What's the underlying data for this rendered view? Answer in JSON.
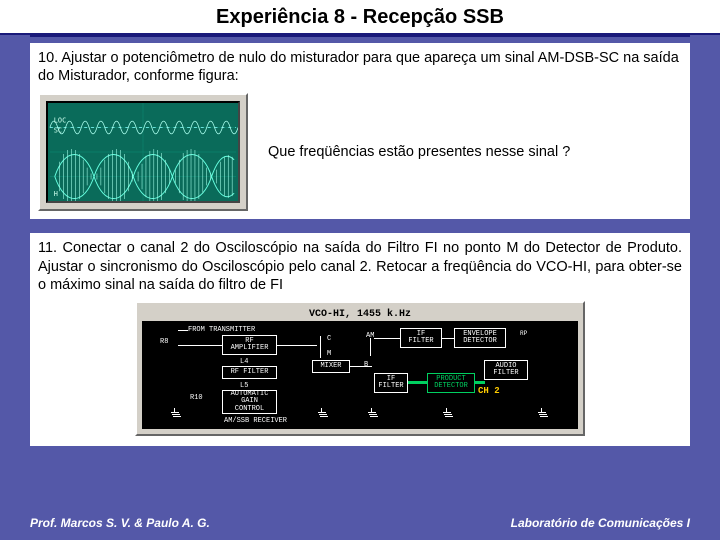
{
  "title": "Experiência 8 -   Recepção SSB",
  "step10": "10. Ajustar o potenciômetro de nulo do misturador para que apareça um sinal AM-DSB-SC na saída do Misturador, conforme figura:",
  "scope": {
    "bg": "#0a6b5a",
    "grid": "#0c8f78",
    "trace1_color": "#66ffe0",
    "trace2_color": "#aaffee",
    "label_loc": "LOC",
    "label_sc": "SC",
    "label_h": "H"
  },
  "question": "Que freqüências estão presentes nesse sinal ?",
  "step11": "11. Conectar o canal 2 do Osciloscópio na saída do Filtro FI no ponto M do Detector de Produto. Ajustar o sincronismo do Osciloscópio pelo canal 2. Retocar a freqüência do VCO-HI, para obter-se o máximo sinal na saída do filtro de FI",
  "diagram": {
    "header": "VCO-HI,  1455 k.Hz",
    "from_tx": "FROM TRANSMITTER",
    "r8": "R8",
    "rf_amp": "RF\nAMPLIFIER",
    "l4": "L4",
    "rf_filter": "RF FILTER",
    "l5": "L5",
    "r10": "R10",
    "agc": "AUTOMATIC\nGAIN\nCONTROL",
    "rx": "AM/SSB RECEIVER",
    "c": "C",
    "m": "M",
    "mixer": "MIXER",
    "am": "AM",
    "b": "B",
    "if_filter": "IF\nFILTER",
    "if_filter2": "IF\nFILTER",
    "env": "ENVELOPE\nDETECTOR",
    "audio": "AUDIO\nFILTER",
    "prod": "PRODUCT\nDETECTOR",
    "rp": "RP",
    "ch2": "CH 2"
  },
  "footer_left": "Prof. Marcos S. V. & Paulo A. G.",
  "footer_right": "Laboratório de Comunicações I"
}
